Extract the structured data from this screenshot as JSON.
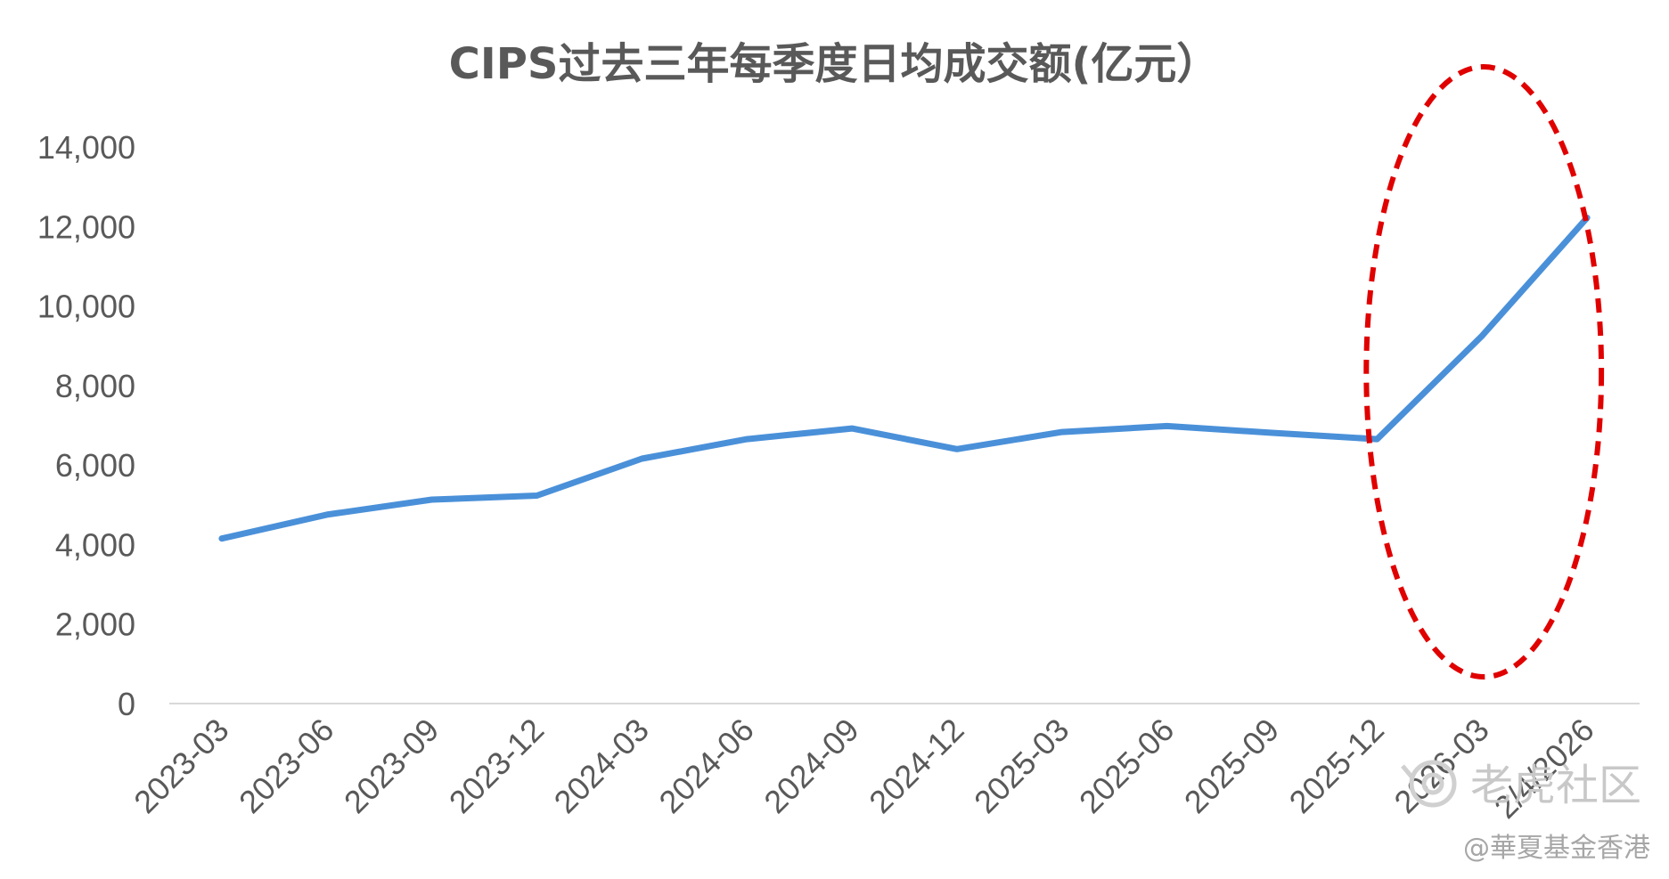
{
  "chart_data": {
    "type": "line",
    "title": "CIPS过去三年每季度日均成交额(亿元）",
    "xlabel": "",
    "ylabel": "",
    "categories": [
      "2023-03",
      "2023-06",
      "2023-09",
      "2023-12",
      "2024-03",
      "2024-06",
      "2024-09",
      "2024-12",
      "2025-03",
      "2025-06",
      "2025-09",
      "2025-12",
      "2026-03",
      "2/4/2026"
    ],
    "series": [
      {
        "values": [
          4150,
          4750,
          5130,
          5230,
          6160,
          6650,
          6920,
          6400,
          6830,
          6980,
          6810,
          6650,
          9250,
          12220
        ]
      }
    ],
    "ylim": [
      0,
      14000
    ],
    "yticks": [
      "0",
      "2,000",
      "4,000",
      "6,000",
      "8,000",
      "10,000",
      "12,000",
      "14,000"
    ],
    "grid": false,
    "legend": "none",
    "line_color": "#4a90d9",
    "highlight": {
      "shape": "dashed-ellipse",
      "color": "#e00000",
      "covers_categories": [
        "2025-12",
        "2026-03",
        "2/4/2026"
      ]
    }
  },
  "watermark": {
    "brand": "老虎社区",
    "credit": "@華夏基金香港"
  }
}
